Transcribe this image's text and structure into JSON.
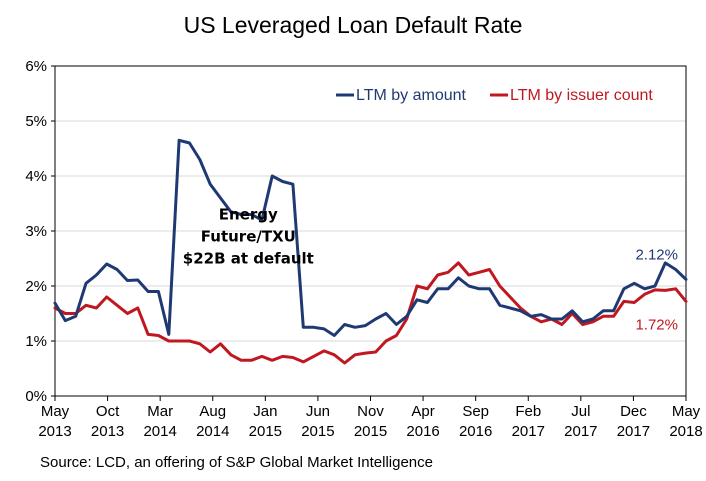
{
  "chart_data": {
    "type": "line",
    "title": "US Leveraged Loan Default Rate",
    "source": "Source: LCD, an offering of S&P Global Market Intelligence",
    "ylim": [
      0,
      6
    ],
    "yticks": [
      "0%",
      "1%",
      "2%",
      "3%",
      "4%",
      "5%",
      "6%"
    ],
    "x_start": "2013-05",
    "x_end": "2018-05",
    "xticks": [
      {
        "month": "2013-05",
        "line1": "May",
        "line2": "2013"
      },
      {
        "month": "2013-10",
        "line1": "Oct",
        "line2": "2013"
      },
      {
        "month": "2014-03",
        "line1": "Mar",
        "line2": "2014"
      },
      {
        "month": "2014-08",
        "line1": "Aug",
        "line2": "2014"
      },
      {
        "month": "2015-01",
        "line1": "Jan",
        "line2": "2015"
      },
      {
        "month": "2015-06",
        "line1": "Jun",
        "line2": "2015"
      },
      {
        "month": "2015-11",
        "line1": "Nov",
        "line2": "2015"
      },
      {
        "month": "2016-04",
        "line1": "Apr",
        "line2": "2016"
      },
      {
        "month": "2016-09",
        "line1": "Sep",
        "line2": "2016"
      },
      {
        "month": "2017-02",
        "line1": "Feb",
        "line2": "2017"
      },
      {
        "month": "2017-07",
        "line1": "Jul",
        "line2": "2017"
      },
      {
        "month": "2017-12",
        "line1": "Dec",
        "line2": "2017"
      },
      {
        "month": "2018-05",
        "line1": "May",
        "line2": "2018"
      }
    ],
    "legend_position": "top-right",
    "series": [
      {
        "name": "LTM by amount",
        "color": "#1f3a73",
        "values": [
          1.69,
          1.37,
          1.45,
          2.05,
          2.2,
          2.4,
          2.3,
          2.1,
          2.11,
          1.9,
          1.9,
          1.12,
          4.65,
          4.6,
          4.3,
          3.85,
          3.6,
          3.35,
          3.3,
          3.3,
          3.2,
          4.0,
          3.9,
          3.85,
          1.25,
          1.25,
          1.22,
          1.1,
          1.3,
          1.25,
          1.28,
          1.4,
          1.5,
          1.3,
          1.45,
          1.75,
          1.7,
          1.95,
          1.95,
          2.15,
          2.0,
          1.95,
          1.95,
          1.65,
          1.6,
          1.55,
          1.45,
          1.48,
          1.4,
          1.4,
          1.55,
          1.35,
          1.4,
          1.55,
          1.55,
          1.95,
          2.05,
          1.95,
          2.0,
          2.42,
          2.3,
          2.12
        ]
      },
      {
        "name": "LTM by issuer count",
        "color": "#c01820",
        "values": [
          1.6,
          1.5,
          1.5,
          1.65,
          1.6,
          1.8,
          1.65,
          1.5,
          1.6,
          1.12,
          1.1,
          1.0,
          1.0,
          1.0,
          0.95,
          0.8,
          0.95,
          0.75,
          0.65,
          0.65,
          0.72,
          0.65,
          0.72,
          0.7,
          0.62,
          0.72,
          0.82,
          0.75,
          0.6,
          0.75,
          0.78,
          0.8,
          1.0,
          1.1,
          1.4,
          2.0,
          1.95,
          2.2,
          2.25,
          2.42,
          2.2,
          2.25,
          2.3,
          2.0,
          1.8,
          1.6,
          1.45,
          1.35,
          1.4,
          1.3,
          1.5,
          1.3,
          1.35,
          1.45,
          1.45,
          1.72,
          1.7,
          1.85,
          1.93,
          1.92,
          1.95,
          1.72
        ]
      }
    ],
    "annotations": [
      {
        "lines": [
          "Energy",
          "Future/TXU",
          "$22B at default"
        ],
        "month": "2014-11",
        "y": 2.7
      },
      {
        "text": "2.12%",
        "series": 0
      },
      {
        "text": "1.72%",
        "series": 1
      }
    ]
  }
}
